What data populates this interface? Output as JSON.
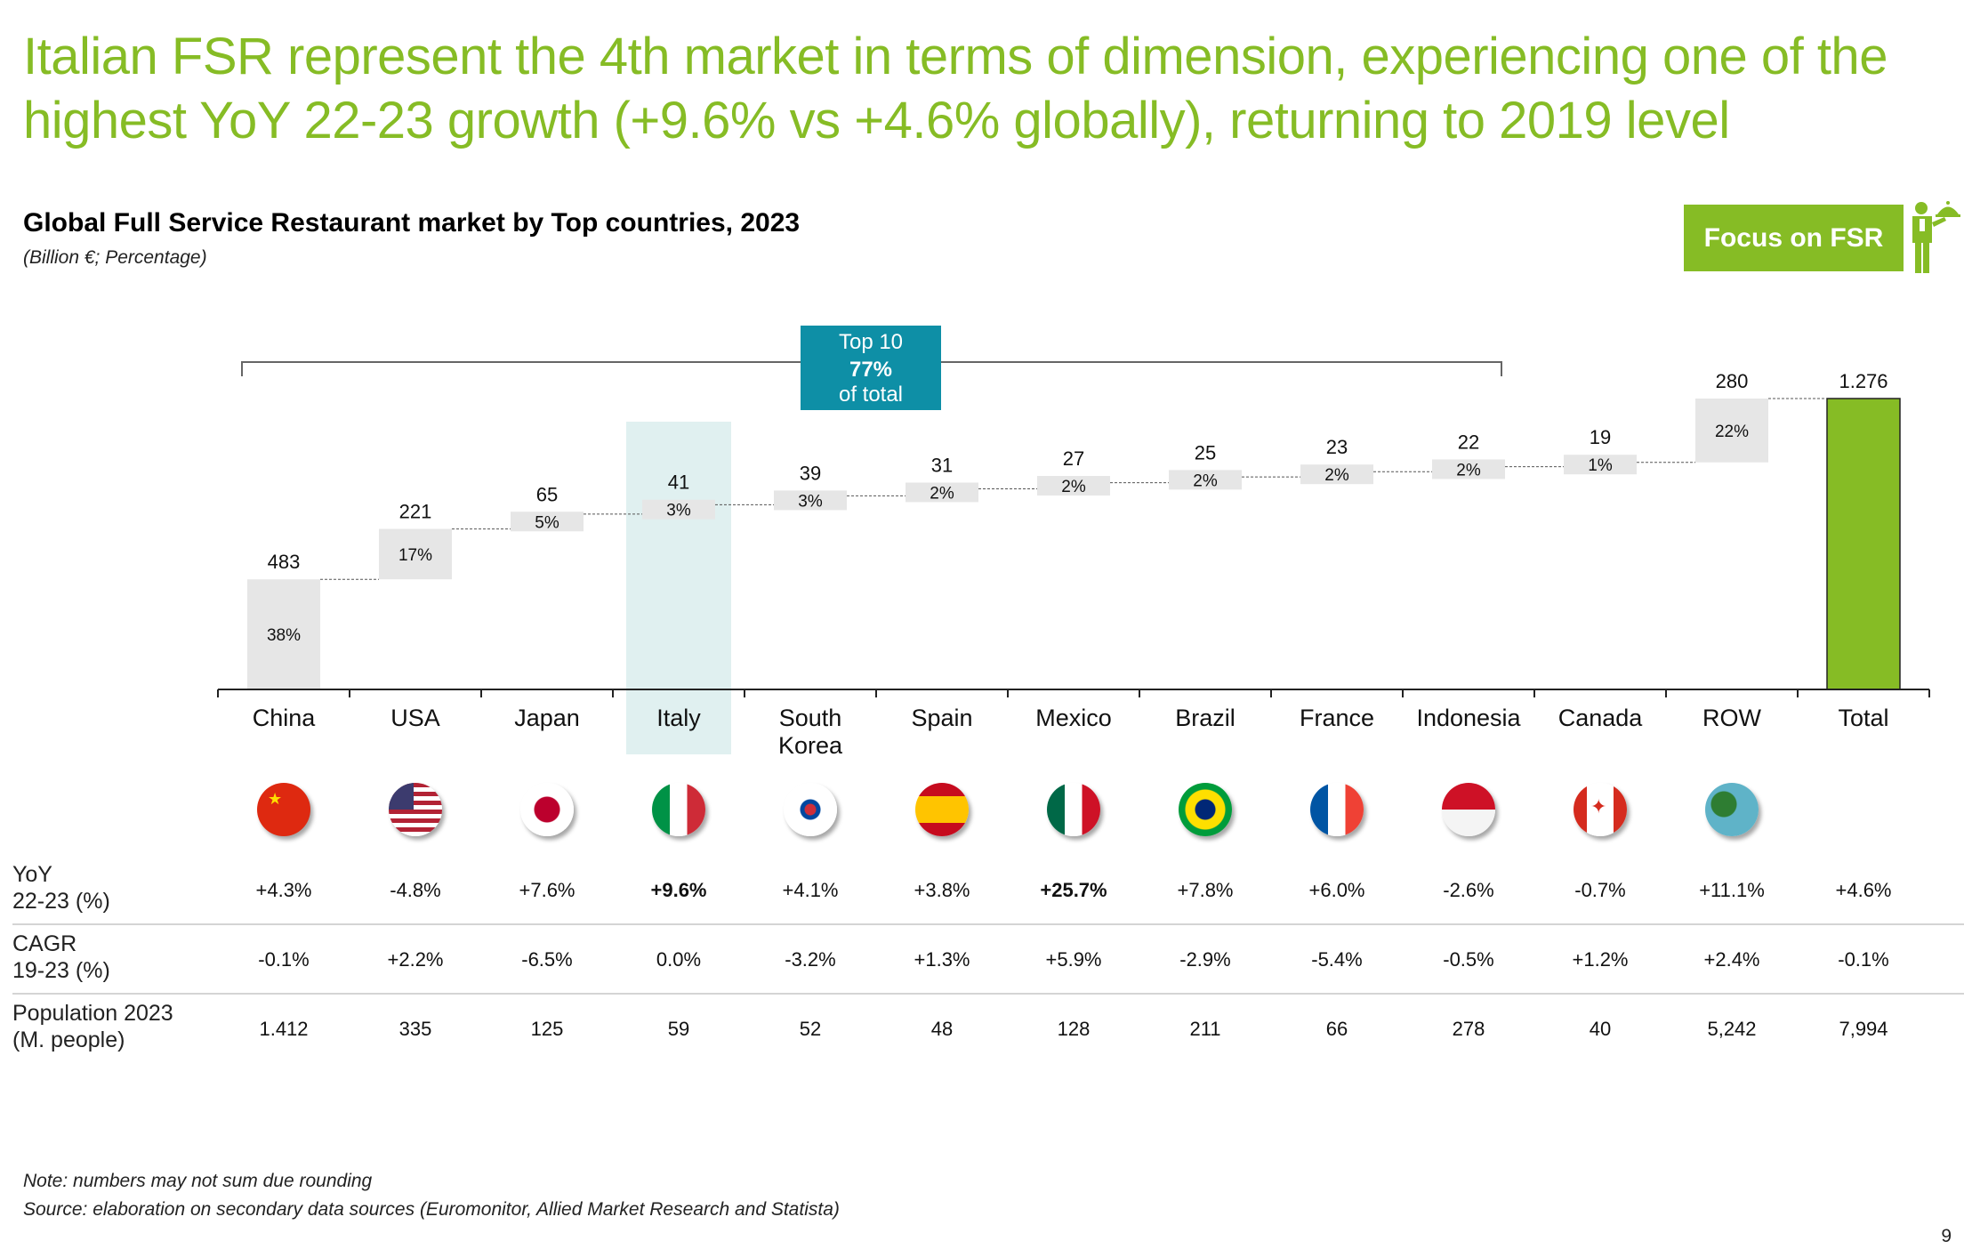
{
  "headline": "Italian FSR represent the 4th market in terms of dimension, experiencing one of the highest YoY 22-23 growth (+9.6% vs +4.6% globally), returning to 2019 level",
  "chart_title": "Global Full Service Restaurant market by Top countries, 2023",
  "chart_subtitle": "(Billion €; Percentage)",
  "focus_button": "Focus on FSR",
  "top10_callout": {
    "line1": "Top 10",
    "line2": "77%",
    "line3": "of total"
  },
  "colors": {
    "brand_green": "#86bc25",
    "teal_callout": "#0e8fa6",
    "bar_grey": "#e6e6e6",
    "highlight": "#e0f0f0"
  },
  "chart_data": {
    "type": "waterfall",
    "title": "Global Full Service Restaurant market by Top countries, 2023",
    "units": "Billion €; Percentage",
    "categories": [
      "China",
      "USA",
      "Japan",
      "Italy",
      "South Korea",
      "Spain",
      "Mexico",
      "Brazil",
      "France",
      "Indonesia",
      "Canada",
      "ROW",
      "Total"
    ],
    "values": [
      483,
      221,
      65,
      41,
      39,
      31,
      27,
      25,
      23,
      22,
      19,
      280,
      1276
    ],
    "value_labels": [
      "483",
      "221",
      "65",
      "41",
      "39",
      "31",
      "27",
      "25",
      "23",
      "22",
      "19",
      "280",
      "1.276"
    ],
    "share_labels": [
      "38%",
      "17%",
      "5%",
      "3%",
      "3%",
      "2%",
      "2%",
      "2%",
      "2%",
      "2%",
      "1%",
      "22%",
      ""
    ],
    "highlighted_category": "Italy",
    "total_category": "Total",
    "ylim": [
      0,
      1276
    ]
  },
  "flags": [
    "china-flag-icon",
    "usa-flag-icon",
    "japan-flag-icon",
    "italy-flag-icon",
    "south-korea-flag-icon",
    "spain-flag-icon",
    "mexico-flag-icon",
    "brazil-flag-icon",
    "france-flag-icon",
    "indonesia-flag-icon",
    "canada-flag-icon",
    "globe-icon"
  ],
  "table": {
    "rows": [
      {
        "label1": "YoY",
        "label2": "22-23 (%)",
        "values": [
          "+4.3%",
          "-4.8%",
          "+7.6%",
          "+9.6%",
          "+4.1%",
          "+3.8%",
          "+25.7%",
          "+7.8%",
          "+6.0%",
          "-2.6%",
          "-0.7%",
          "+11.1%",
          "+4.6%"
        ],
        "bold": [
          3,
          6
        ]
      },
      {
        "label1": "CAGR",
        "label2": "19-23 (%)",
        "values": [
          "-0.1%",
          "+2.2%",
          "-6.5%",
          "0.0%",
          "-3.2%",
          "+1.3%",
          "+5.9%",
          "-2.9%",
          "-5.4%",
          "-0.5%",
          "+1.2%",
          "+2.4%",
          "-0.1%"
        ],
        "bold": []
      },
      {
        "label1": "Population 2023",
        "label2": "(M. people)",
        "values": [
          "1.412",
          "335",
          "125",
          "59",
          "52",
          "48",
          "128",
          "211",
          "66",
          "278",
          "40",
          "5,242",
          "7,994"
        ],
        "bold": []
      }
    ]
  },
  "notes": {
    "note": "Note: numbers may not sum due rounding",
    "source": "Source: elaboration on secondary data sources (Euromonitor, Allied Market Research and Statista)"
  },
  "page_number": "9"
}
